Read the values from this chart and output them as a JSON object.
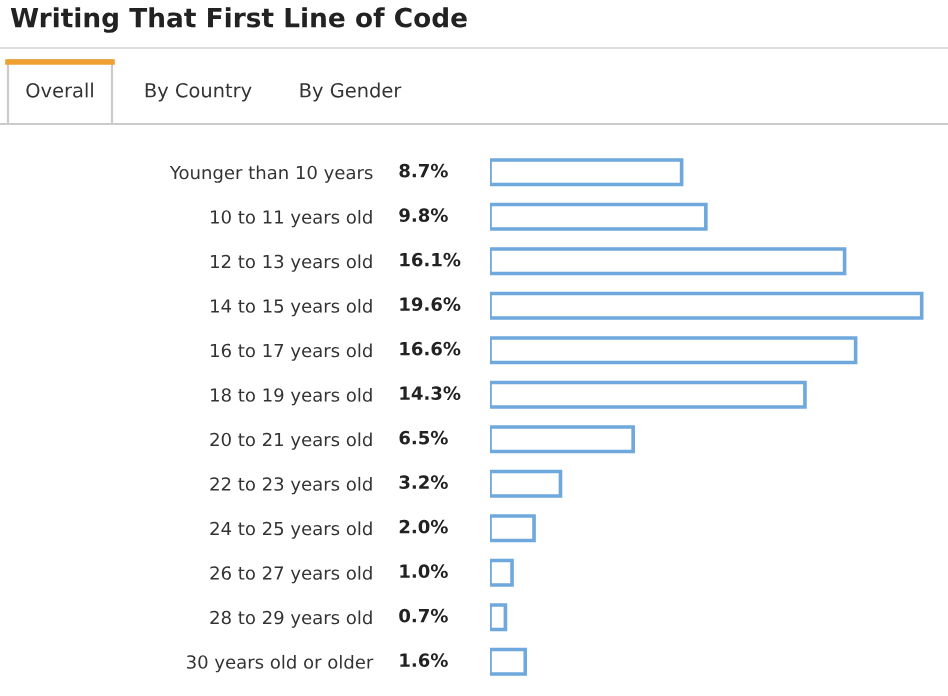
{
  "chart_data": {
    "type": "bar",
    "orientation": "horizontal",
    "title": "Writing That First Line of Code",
    "annotations": [
      "Overall",
      "By Country",
      "By Gender"
    ],
    "categories": [
      "Younger than 10 years",
      "10 to 11 years old",
      "12 to 13 years old",
      "14 to 15 years old",
      "16 to 17 years old",
      "18 to 19 years old",
      "20 to 21 years old",
      "22 to 23 years old",
      "24 to 25 years old",
      "26 to 27 years old",
      "28 to 29 years old",
      "30 years old or older"
    ],
    "values": [
      8.7,
      9.8,
      16.1,
      19.6,
      16.6,
      14.3,
      6.5,
      3.2,
      2.0,
      1.0,
      0.7,
      1.6
    ],
    "value_labels": [
      "8.7%",
      "9.8%",
      "16.1%",
      "19.6%",
      "16.6%",
      "14.3%",
      "6.5%",
      "3.2%",
      "2.0%",
      "1.0%",
      "0.7%",
      "1.6%"
    ],
    "color": "#6fa8dc",
    "grid": false,
    "legend": false
  }
}
